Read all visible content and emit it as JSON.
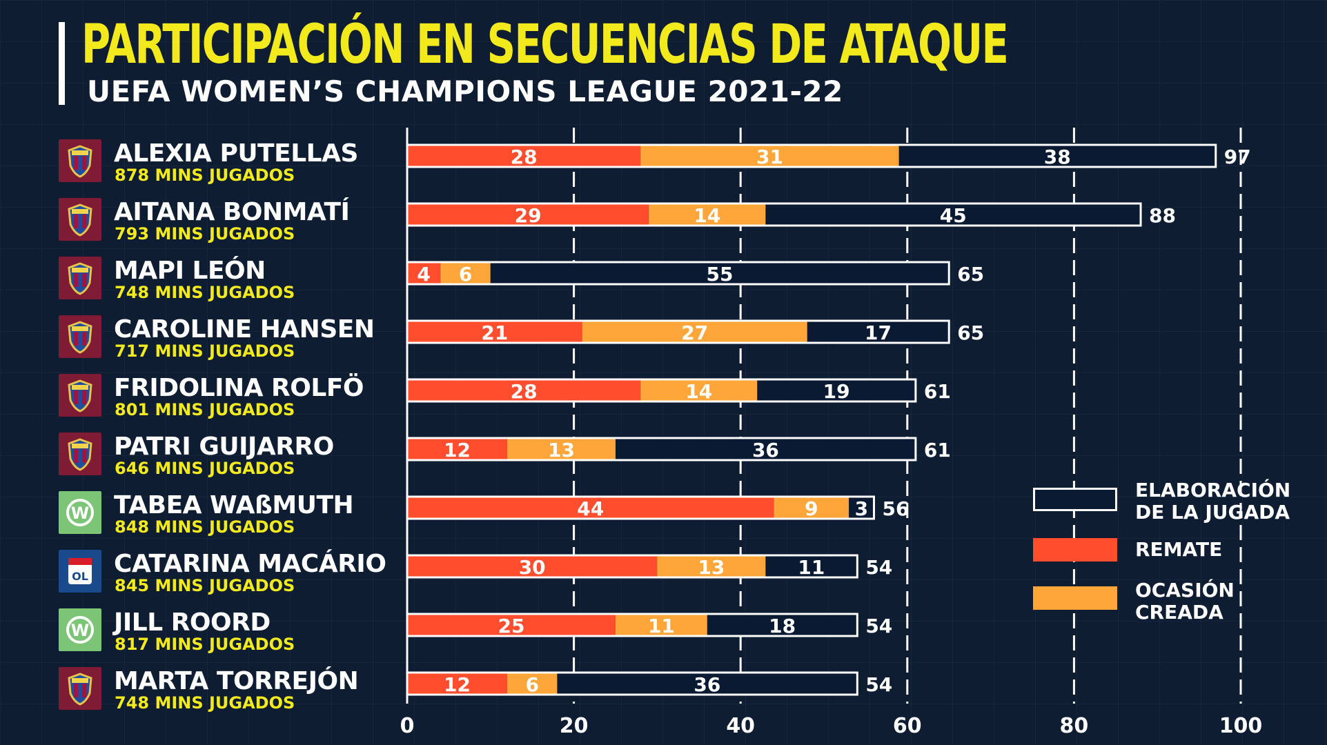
{
  "header": {
    "title": "PARTICIPACIÓN EN SECUENCIAS DE ATAQUE",
    "subtitle": "UEFA WOMEN’S CHAMPIONS LEAGUE 2021-22"
  },
  "colors": {
    "remate": "#ff4d2e",
    "ocasion": "#ffa63a",
    "elaboracion": "#0b1a33",
    "grid": "#ffffff",
    "accent": "#f2ea1c"
  },
  "players": [
    {
      "name": "ALEXIA PUTELLAS",
      "mins": "878 MINS JUGADOS",
      "club": "fcb",
      "badge_icon": "fc-barcelona-crest-icon"
    },
    {
      "name": "AITANA BONMATÍ",
      "mins": "793 MINS JUGADOS",
      "club": "fcb",
      "badge_icon": "fc-barcelona-crest-icon"
    },
    {
      "name": "MAPI LEÓN",
      "mins": "748 MINS JUGADOS",
      "club": "fcb",
      "badge_icon": "fc-barcelona-crest-icon"
    },
    {
      "name": "CAROLINE HANSEN",
      "mins": "717 MINS JUGADOS",
      "club": "fcb",
      "badge_icon": "fc-barcelona-crest-icon"
    },
    {
      "name": "FRIDOLINA ROLFÖ",
      "mins": "801 MINS JUGADOS",
      "club": "fcb",
      "badge_icon": "fc-barcelona-crest-icon"
    },
    {
      "name": "PATRI GUIJARRO",
      "mins": "646 MINS JUGADOS",
      "club": "fcb",
      "badge_icon": "fc-barcelona-crest-icon"
    },
    {
      "name": "TABEA WAßMUTH",
      "mins": "848 MINS JUGADOS",
      "club": "wol",
      "badge_icon": "vfl-wolfsburg-crest-icon"
    },
    {
      "name": "CATARINA MACÁRIO",
      "mins": "845 MINS JUGADOS",
      "club": "ol",
      "badge_icon": "olympique-lyonnais-crest-icon"
    },
    {
      "name": "JILL ROORD",
      "mins": "817 MINS JUGADOS",
      "club": "wol",
      "badge_icon": "vfl-wolfsburg-crest-icon"
    },
    {
      "name": "MARTA TORREJÓN",
      "mins": "748 MINS JUGADOS",
      "club": "fcb",
      "badge_icon": "fc-barcelona-crest-icon"
    }
  ],
  "legend": {
    "elaboracion": "ELABORACIÓN DE LA JUGADA",
    "remate": "REMATE",
    "ocasion": "OCASIÓN CREADA"
  },
  "chart_data": {
    "type": "bar",
    "orientation": "horizontal",
    "stacked": true,
    "title": "PARTICIPACIÓN EN SECUENCIAS DE ATAQUE",
    "subtitle": "UEFA WOMEN’S CHAMPIONS LEAGUE 2021-22",
    "categories": [
      "ALEXIA PUTELLAS",
      "AITANA BONMATÍ",
      "MAPI LEÓN",
      "CAROLINE HANSEN",
      "FRIDOLINA ROLFÖ",
      "PATRI GUIJARRO",
      "TABEA WAßMUTH",
      "CATARINA MACÁRIO",
      "JILL ROORD",
      "MARTA TORREJÓN"
    ],
    "series": [
      {
        "name": "REMATE",
        "key": "remate",
        "values": [
          28,
          29,
          4,
          21,
          28,
          12,
          44,
          30,
          25,
          12
        ]
      },
      {
        "name": "OCASIÓN CREADA",
        "key": "ocasion",
        "values": [
          31,
          14,
          6,
          27,
          14,
          13,
          9,
          13,
          11,
          6
        ]
      },
      {
        "name": "ELABORACIÓN DE LA JUGADA",
        "key": "elaboracion",
        "values": [
          38,
          45,
          55,
          17,
          19,
          36,
          3,
          11,
          18,
          36
        ]
      }
    ],
    "totals": [
      97,
      88,
      65,
      65,
      61,
      61,
      56,
      54,
      54,
      54
    ],
    "xlim": [
      0,
      100
    ],
    "xticks": [
      "0",
      "20",
      "40",
      "60",
      "80",
      "100"
    ],
    "xlabel": "",
    "ylabel": "",
    "grid": true,
    "legend_position": "right"
  }
}
